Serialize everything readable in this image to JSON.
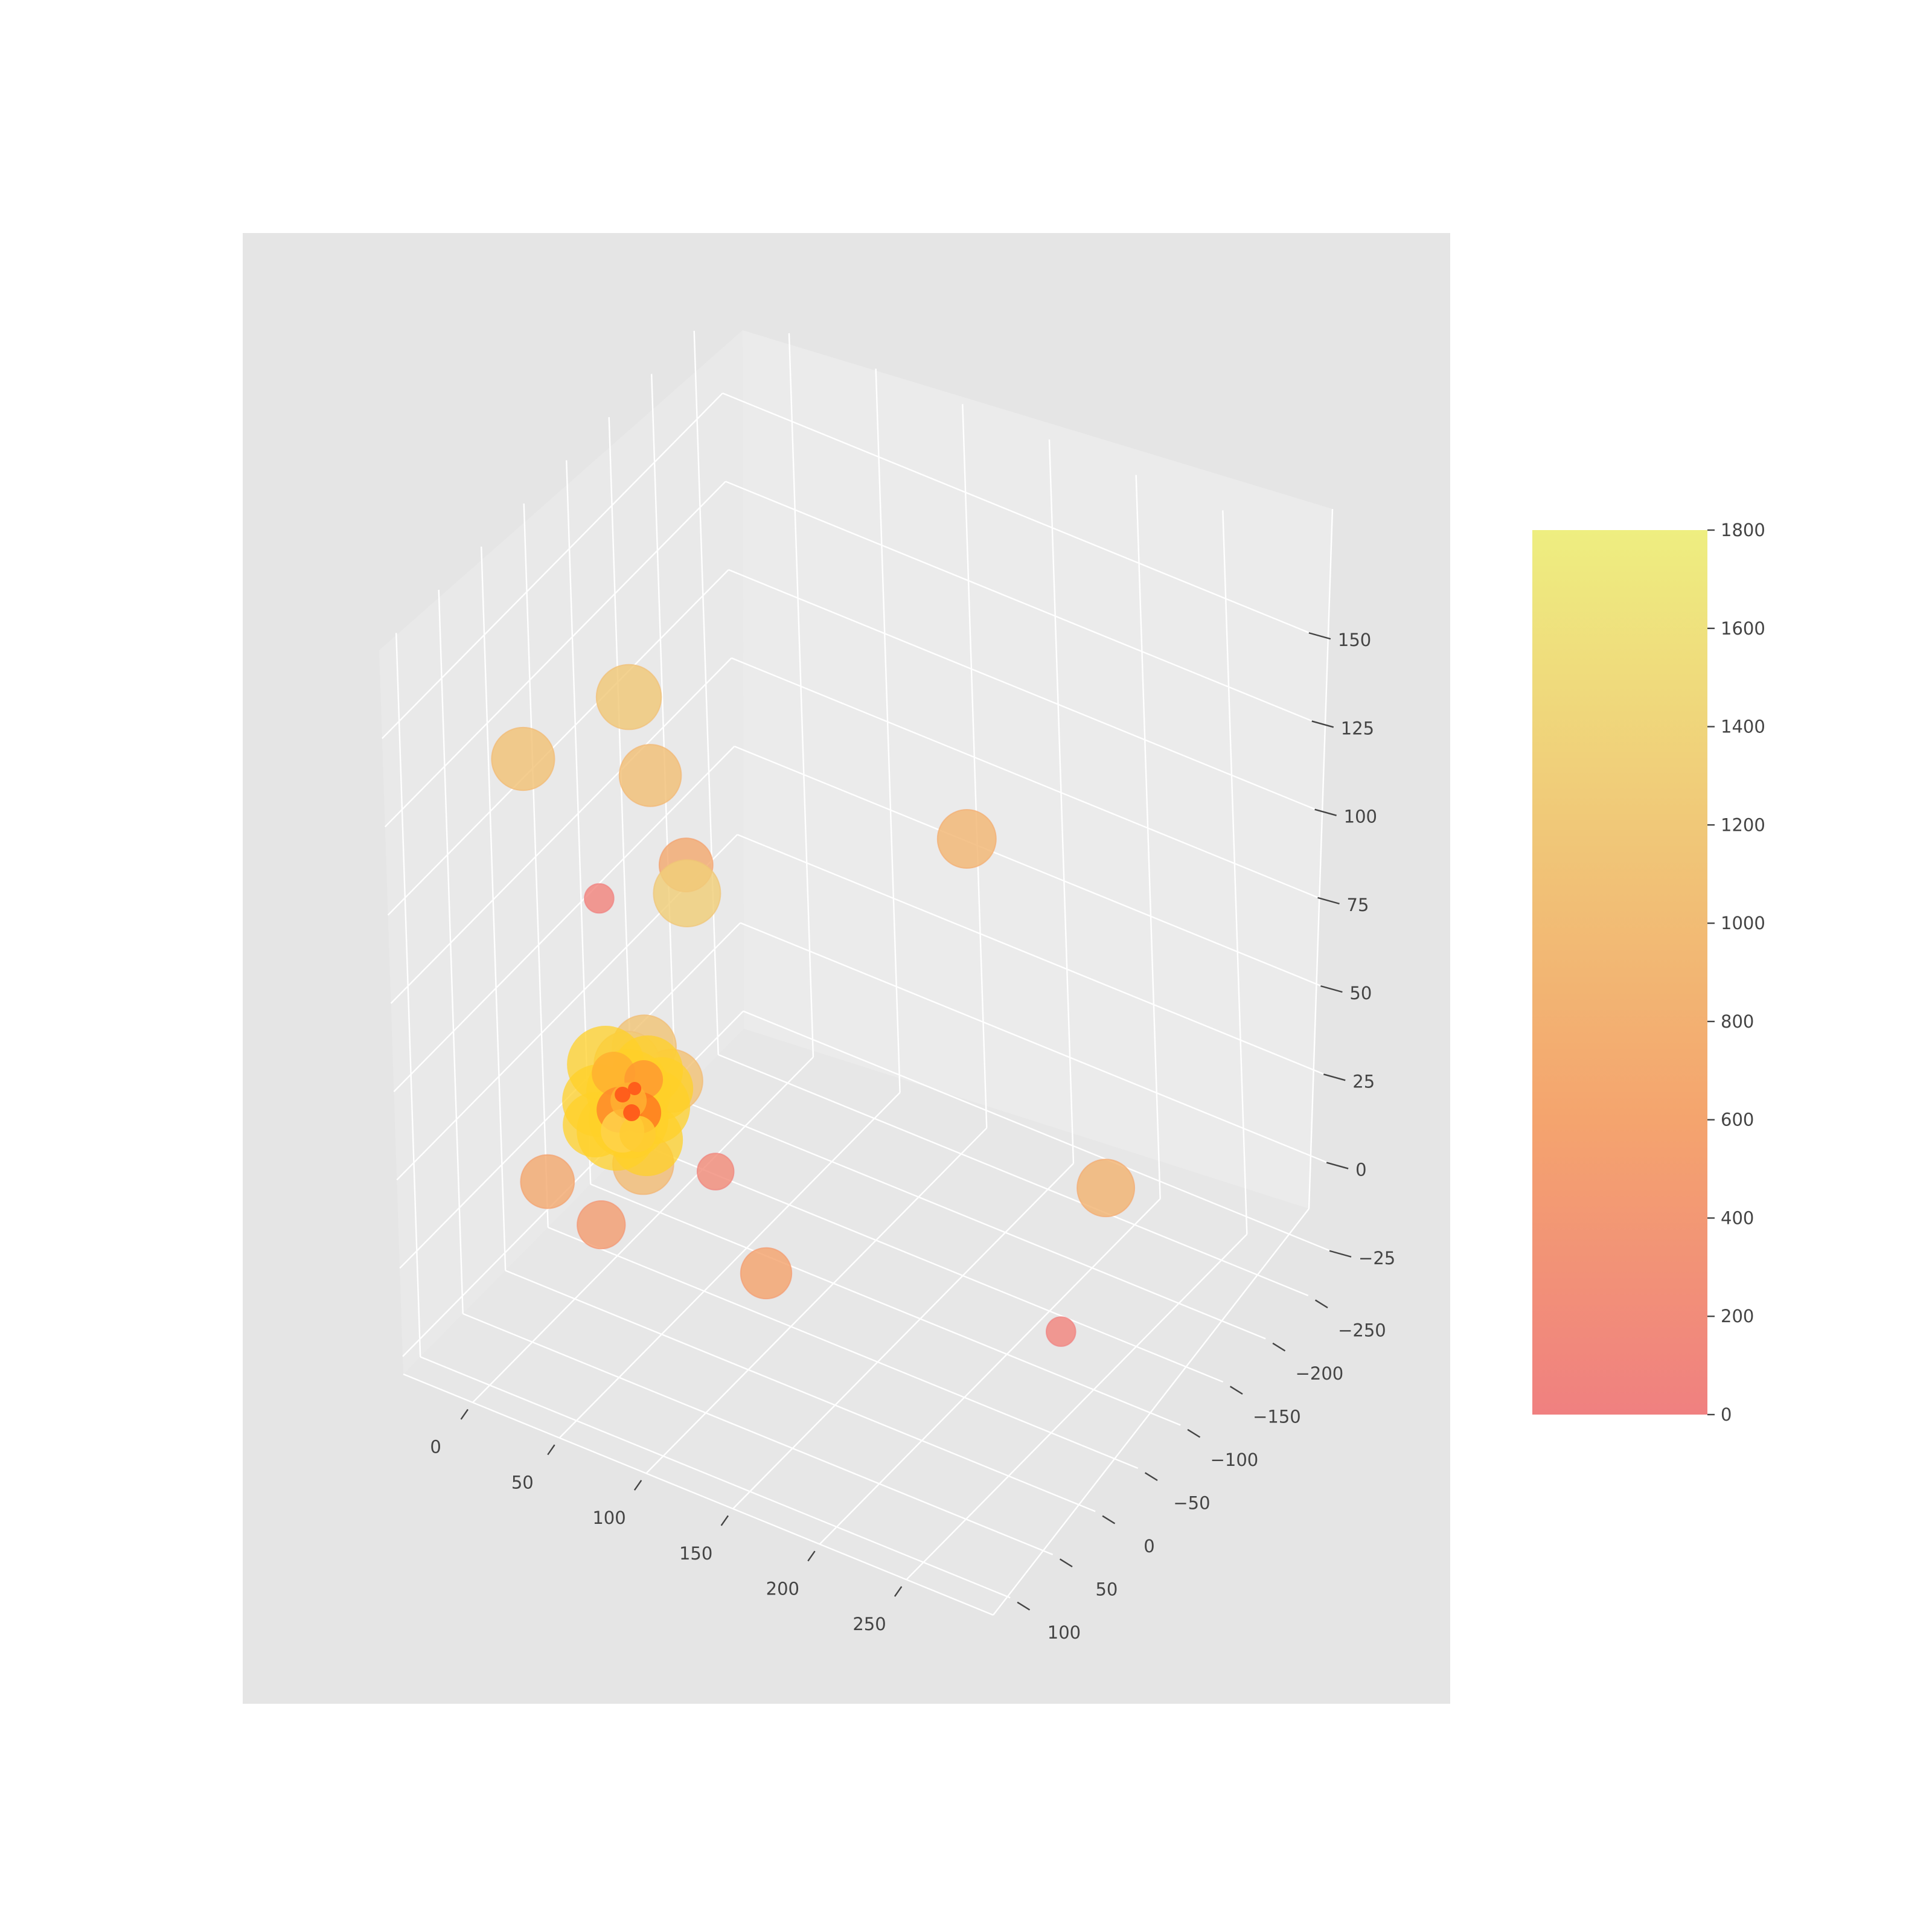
{
  "chart_data": {
    "type": "scatter",
    "projection": "3d",
    "title": "",
    "xlabel": "",
    "ylabel": "",
    "zlabel": "",
    "xlim": [
      -40,
      300
    ],
    "ylim": [
      -280,
      120
    ],
    "zlim": [
      -30,
      175
    ],
    "x_ticks": [
      0,
      50,
      100,
      150,
      200,
      250
    ],
    "x_tick_labels": [
      "0",
      "50",
      "100",
      "150",
      "200",
      "250"
    ],
    "y_ticks": [
      -250,
      -200,
      -150,
      -100,
      -50,
      0,
      50,
      100
    ],
    "y_tick_labels": [
      "−250",
      "−200",
      "−150",
      "−100",
      "−50",
      "0",
      "50",
      "100"
    ],
    "z_ticks": [
      -25,
      0,
      25,
      50,
      75,
      100,
      125,
      150
    ],
    "z_tick_labels": [
      "−25",
      "0",
      "25",
      "50",
      "75",
      "100",
      "125",
      "150"
    ],
    "grid": true,
    "pane_color": "#e5e5e5",
    "colorbar": {
      "min": 0,
      "max": 1800,
      "ticks": [
        0,
        200,
        400,
        600,
        800,
        1000,
        1200,
        1400,
        1600,
        1800
      ],
      "tick_labels": [
        "0",
        "200",
        "400",
        "600",
        "800",
        "1000",
        "1200",
        "1400",
        "1600",
        "1800"
      ],
      "colormap": [
        "#f08080",
        "#f4a46e",
        "#f0c878",
        "#eeee80"
      ]
    },
    "series": [
      {
        "points": [
          {
            "x": -30,
            "y": -20,
            "z": 112,
            "value": 1100
          },
          {
            "x": 26,
            "y": -55,
            "z": 110,
            "value": 1050
          },
          {
            "x": 40,
            "y": -65,
            "z": 85,
            "value": 700
          },
          {
            "x": 40,
            "y": -65,
            "z": 77,
            "value": 1300
          },
          {
            "x": 15,
            "y": -55,
            "z": 130,
            "value": 1200
          },
          {
            "x": 40,
            "y": 35,
            "z": 100,
            "value": 80
          },
          {
            "x": 130,
            "y": -210,
            "z": 75,
            "value": 900
          },
          {
            "x": 30,
            "y": -30,
            "z": 40,
            "value": 1150
          },
          {
            "x": 40,
            "y": -40,
            "z": 30,
            "value": 1100
          },
          {
            "x": 30,
            "y": -10,
            "z": 40,
            "value": 1250
          },
          {
            "x": 40,
            "y": -5,
            "z": 15,
            "value": 1000
          },
          {
            "x": 30,
            "y": 85,
            "z": 30,
            "value": 700
          },
          {
            "x": 40,
            "y": 45,
            "z": 10,
            "value": 500
          },
          {
            "x": 95,
            "y": 20,
            "z": 30,
            "value": 200
          },
          {
            "x": 225,
            "y": -170,
            "z": 5,
            "value": 850
          },
          {
            "x": 120,
            "y": 15,
            "z": 5,
            "value": 600
          },
          {
            "x": 250,
            "y": -65,
            "z": -5,
            "value": 80
          },
          {
            "x": 40,
            "y": 5,
            "z": 30,
            "value": 650
          },
          {
            "x": 40,
            "y": 5,
            "z": 25,
            "value": 300
          },
          {
            "x": 40,
            "y": 5,
            "z": 35,
            "value": 600
          }
        ]
      }
    ]
  }
}
